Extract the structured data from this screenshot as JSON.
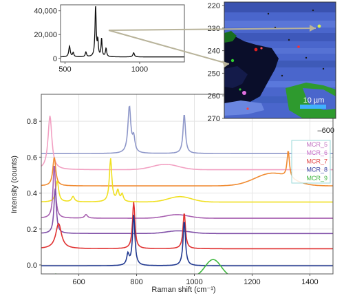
{
  "chart_data": [
    {
      "type": "line",
      "xlabel": "Raman shift (cm⁻¹)",
      "ylabel": "Intensity (counts)",
      "xlim": [
        470,
        1480
      ],
      "ylim": [
        -0.05,
        0.95
      ],
      "x_ticks": [
        600,
        800,
        1000,
        1200,
        1400
      ],
      "y_ticks": [
        0.0,
        0.2,
        0.4,
        0.6,
        0.8
      ],
      "y_tick_labels": [
        "0.0",
        "0.2",
        "0.4",
        "0.6",
        "0.8"
      ],
      "grid": true,
      "legend": {
        "position": "right",
        "entries": [
          "MCR_5",
          "MCR_6",
          "MCR_7",
          "MCR_8",
          "MCR_9"
        ],
        "colors": [
          "#c272c2",
          "#c86fc8",
          "#e04040",
          "#3040a0",
          "#3cb43c"
        ]
      },
      "series": [
        {
          "color": "#8e97c9",
          "baseline": 0.62,
          "peaks": [
            [
              775,
              0.26,
              6
            ],
            [
              790,
              0.08,
              5
            ],
            [
              965,
              0.22,
              5
            ]
          ],
          "bumps": []
        },
        {
          "color": "#f2a0c2",
          "baseline": 0.53,
          "peaks": [
            [
              500,
              0.3,
              8
            ]
          ],
          "bumps": [
            [
              900,
              0.03,
              45
            ]
          ]
        },
        {
          "color": "#f08a30",
          "baseline": 0.44,
          "peaks": [
            [
              515,
              0.16,
              6
            ],
            [
              1325,
              0.15,
              5
            ]
          ],
          "bumps": [
            [
              1270,
              0.07,
              60
            ]
          ]
        },
        {
          "color": "#f0e020",
          "baseline": 0.35,
          "peaks": [
            [
              525,
              0.12,
              6
            ],
            [
              580,
              0.03,
              6
            ],
            [
              710,
              0.24,
              5
            ],
            [
              735,
              0.06,
              5
            ],
            [
              750,
              0.04,
              5
            ]
          ],
          "bumps": [
            [
              950,
              0.03,
              40
            ]
          ]
        },
        {
          "color": "#a860b0",
          "baseline": 0.26,
          "peaks": [
            [
              515,
              0.3,
              5
            ],
            [
              625,
              0.02,
              6
            ]
          ],
          "bumps": [
            [
              940,
              0.02,
              40
            ]
          ]
        },
        {
          "color": "#8050a8",
          "baseline": 0.175,
          "peaks": [
            [
              518,
              0.25,
              5
            ]
          ],
          "bumps": [
            [
              945,
              0.015,
              40
            ]
          ]
        },
        {
          "color": "#e03030",
          "baseline": 0.09,
          "peaks": [
            [
              530,
              0.14,
              12
            ],
            [
              790,
              0.26,
              5
            ],
            [
              965,
              0.2,
              5
            ]
          ],
          "bumps": []
        },
        {
          "color": "#203890",
          "baseline": -0.005,
          "peaks": [
            [
              770,
              0.06,
              5
            ],
            [
              790,
              0.28,
              5
            ],
            [
              965,
              0.25,
              5
            ]
          ],
          "bumps": []
        },
        {
          "color": "#40b840",
          "baseline": -0.07,
          "peaks": [
            [
              520,
              0.02,
              8
            ]
          ],
          "bumps": [
            [
              1065,
              0.1,
              28
            ],
            [
              950,
              0.01,
              30
            ]
          ],
          "dips": [
            [
              690,
              0.012,
              10
            ],
            [
              780,
              0.01,
              10
            ]
          ]
        }
      ]
    },
    {
      "type": "line",
      "xlabel": "",
      "ylabel": "",
      "xlim": [
        470,
        1300
      ],
      "ylim": [
        -3000,
        45000
      ],
      "x_ticks": [
        500,
        1000
      ],
      "y_ticks": [
        0,
        20000,
        40000
      ],
      "y_tick_labels": [
        "0",
        "20,000",
        "40,000"
      ],
      "series": [
        {
          "color": "#111111",
          "baseline": 1200,
          "peaks": [
            [
              530,
              9000,
              6
            ],
            [
              555,
              3500,
              5
            ],
            [
              640,
              4000,
              5
            ],
            [
              705,
              42000,
              5
            ],
            [
              720,
              12000,
              4
            ],
            [
              745,
              15000,
              4
            ],
            [
              775,
              7000,
              5
            ],
            [
              960,
              3500,
              6
            ]
          ],
          "bumps": []
        }
      ]
    },
    {
      "type": "heatmap",
      "y_ticks": [
        220,
        230,
        240,
        250,
        260,
        270
      ],
      "ylim": [
        220,
        270
      ],
      "scale_bar_label": "10 µm",
      "marker_y": 230
    }
  ],
  "corner_label": "–600"
}
